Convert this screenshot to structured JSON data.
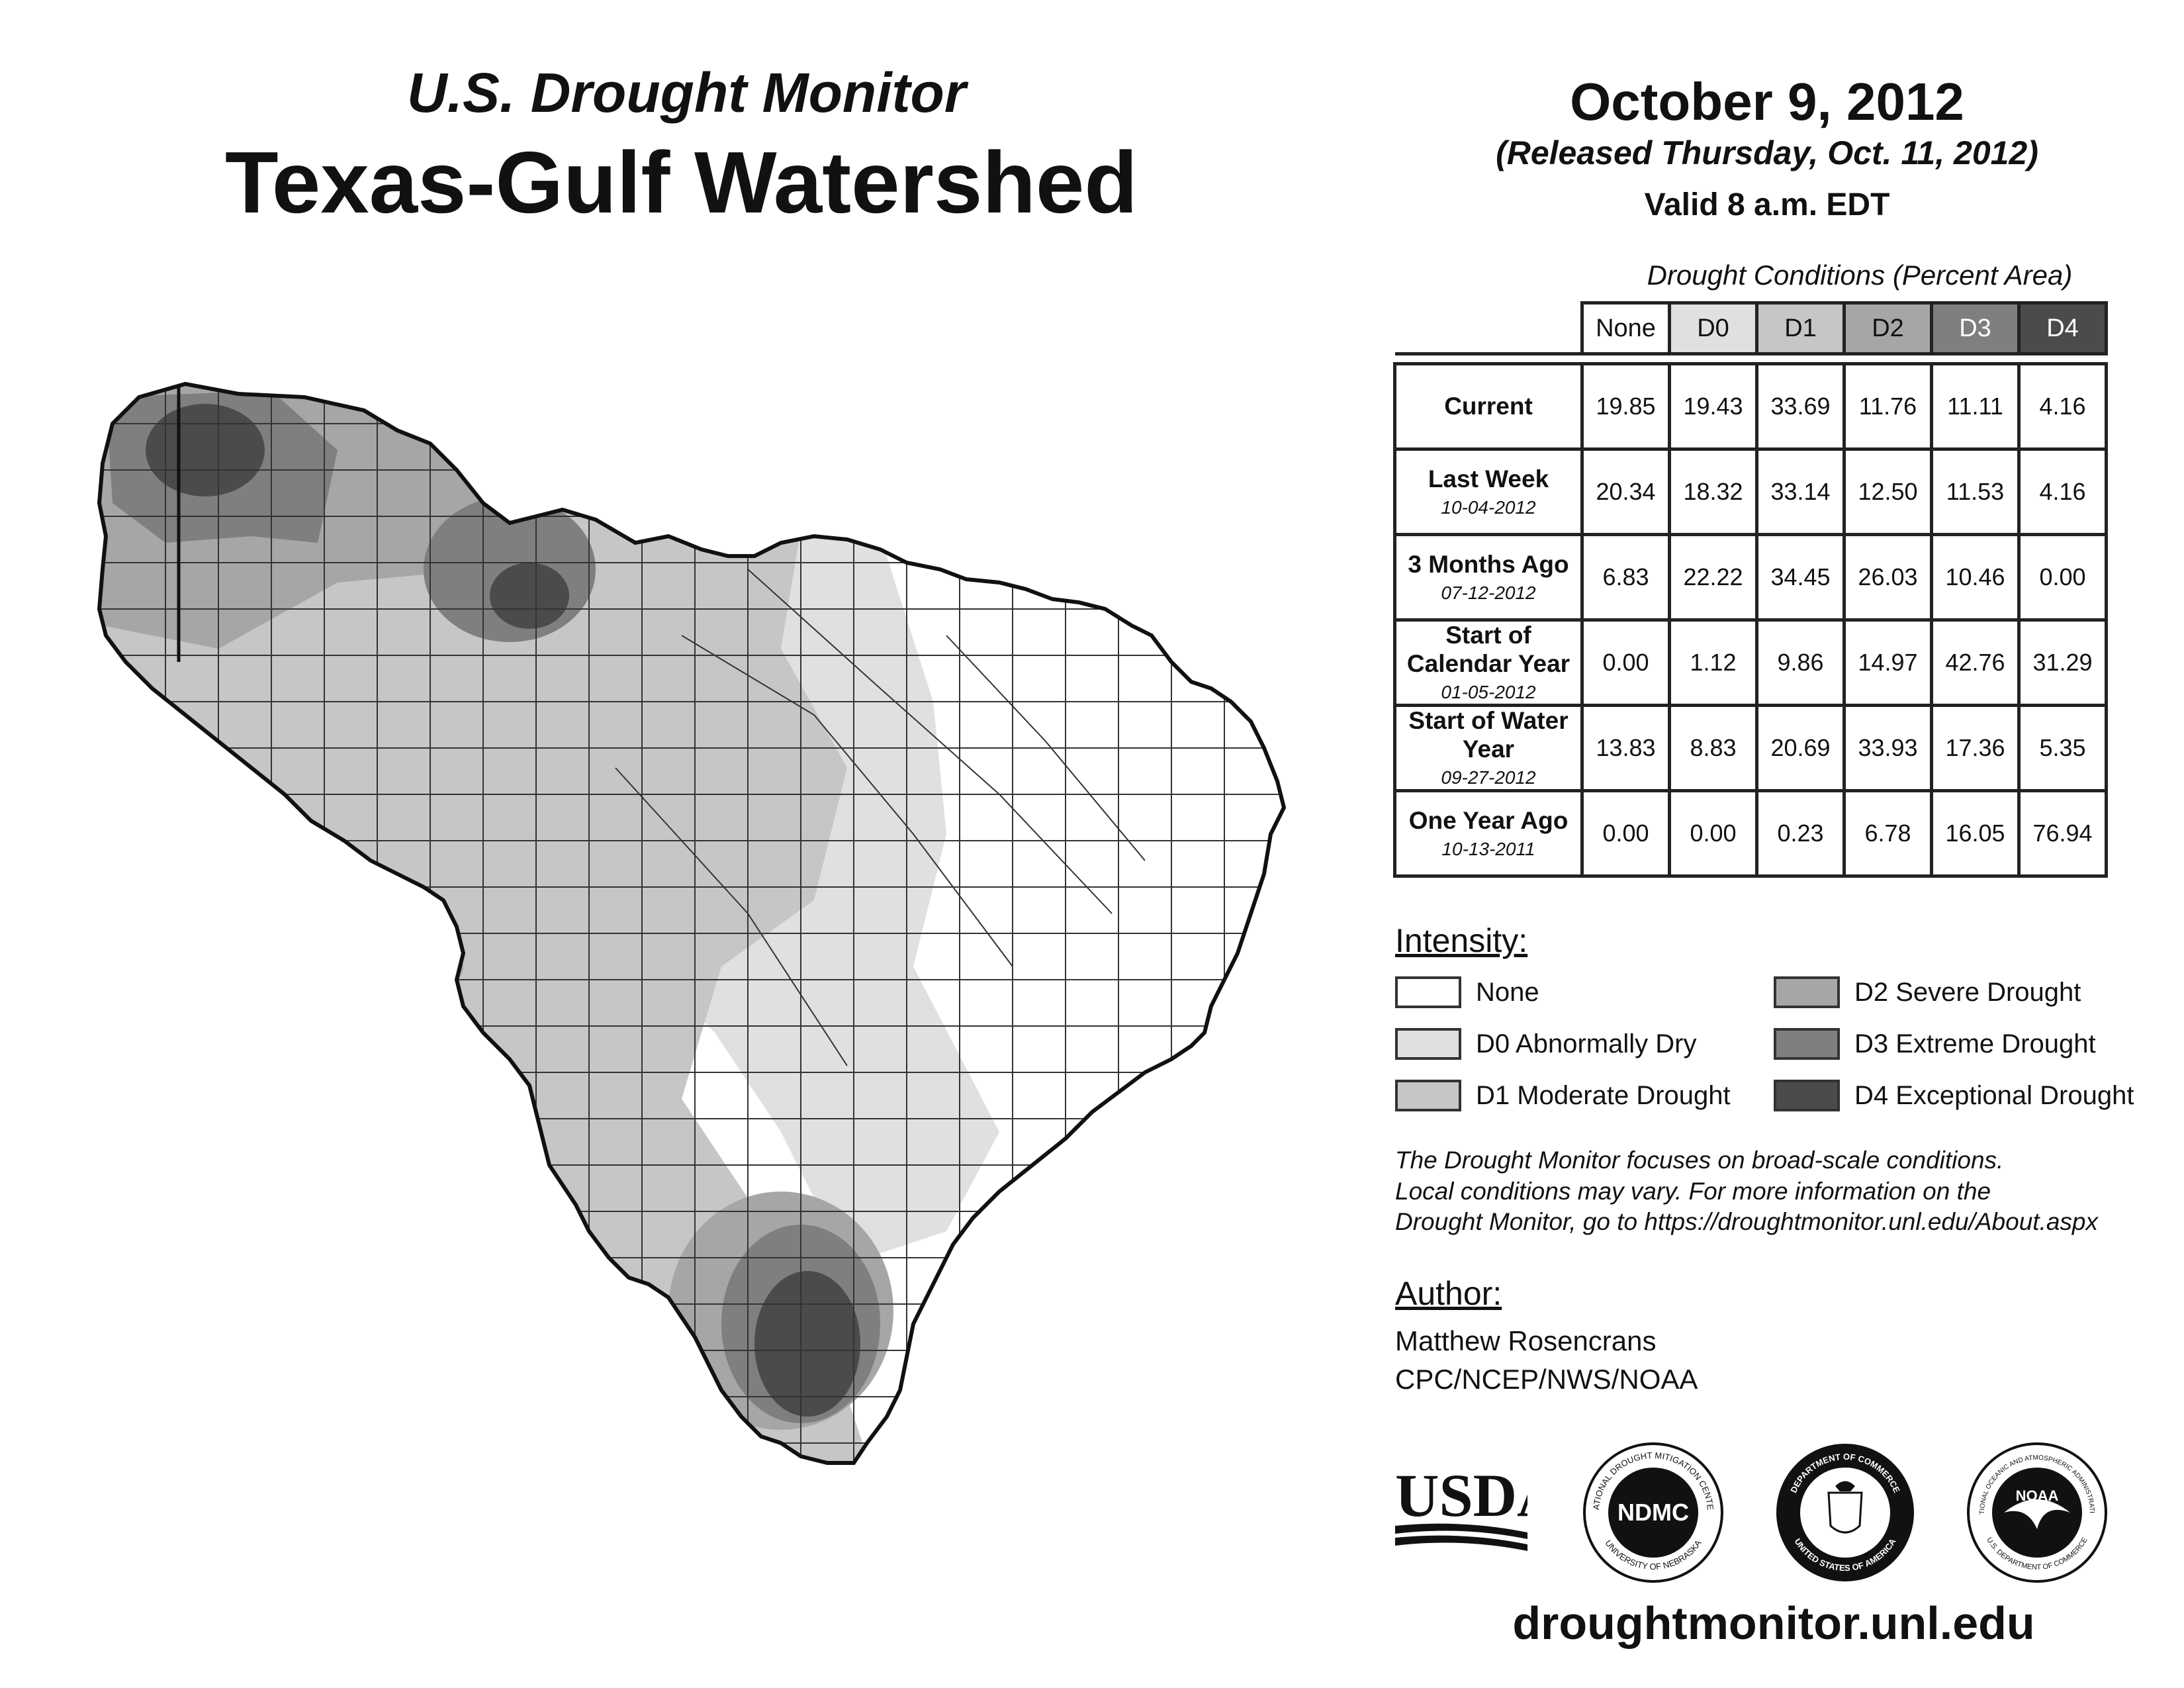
{
  "header": {
    "subtitle": "U.S. Drought Monitor",
    "title": "Texas-Gulf Watershed",
    "date": "October 9, 2012",
    "released": "(Released Thursday, Oct. 11, 2012)",
    "valid": "Valid 8 a.m. EDT"
  },
  "table": {
    "caption": "Drought Conditions (Percent Area)",
    "columns": [
      "None",
      "D0",
      "D1",
      "D2",
      "D3",
      "D4"
    ],
    "rows": [
      {
        "label": "Current",
        "date": "",
        "values": [
          "19.85",
          "19.43",
          "33.69",
          "11.76",
          "11.11",
          "4.16"
        ]
      },
      {
        "label": "Last Week",
        "date": "10-04-2012",
        "values": [
          "20.34",
          "18.32",
          "33.14",
          "12.50",
          "11.53",
          "4.16"
        ]
      },
      {
        "label": "3 Months Ago",
        "date": "07-12-2012",
        "values": [
          "6.83",
          "22.22",
          "34.45",
          "26.03",
          "10.46",
          "0.00"
        ]
      },
      {
        "label": "Start of Calendar Year",
        "date": "01-05-2012",
        "values": [
          "0.00",
          "1.12",
          "9.86",
          "14.97",
          "42.76",
          "31.29"
        ]
      },
      {
        "label": "Start of Water Year",
        "date": "09-27-2012",
        "values": [
          "13.83",
          "8.83",
          "20.69",
          "33.93",
          "17.36",
          "5.35"
        ]
      },
      {
        "label": "One Year Ago",
        "date": "10-13-2011",
        "values": [
          "0.00",
          "0.00",
          "0.23",
          "6.78",
          "16.05",
          "76.94"
        ]
      }
    ]
  },
  "legend": {
    "heading": "Intensity:",
    "items": [
      {
        "label": "None",
        "color": "#ffffff"
      },
      {
        "label": "D0 Abnormally Dry",
        "color": "#e0e0e0"
      },
      {
        "label": "D1 Moderate Drought",
        "color": "#c6c6c6"
      },
      {
        "label": "D2 Severe Drought",
        "color": "#a6a6a6"
      },
      {
        "label": "D3 Extreme Drought",
        "color": "#7f7f7f"
      },
      {
        "label": "D4 Exceptional Drought",
        "color": "#4b4b4b"
      }
    ]
  },
  "note": {
    "line1": "The Drought Monitor focuses on broad-scale conditions.",
    "line2": "Local conditions may vary. For more information on the",
    "line3": "Drought Monitor, go to https://droughtmonitor.unl.edu/About.aspx"
  },
  "author": {
    "heading": "Author:",
    "name": "Matthew Rosencrans",
    "org": "CPC/NCEP/NWS/NOAA"
  },
  "logos": {
    "usda": "USDA",
    "ndmc": "NDMC",
    "ndmc_ring_top": "NATIONAL DROUGHT MITIGATION CENTER",
    "ndmc_ring_bottom": "UNIVERSITY OF NEBRASKA",
    "doc_ring_top": "DEPARTMENT OF COMMERCE",
    "doc_ring_bottom": "UNITED STATES OF AMERICA",
    "noaa": "NOAA",
    "noaa_ring_top": "NATIONAL OCEANIC AND ATMOSPHERIC ADMINISTRATION",
    "noaa_ring_bottom": "U.S. DEPARTMENT OF COMMERCE"
  },
  "website": "droughtmonitor.unl.edu",
  "map": {
    "region": "Texas-Gulf Watershed"
  }
}
